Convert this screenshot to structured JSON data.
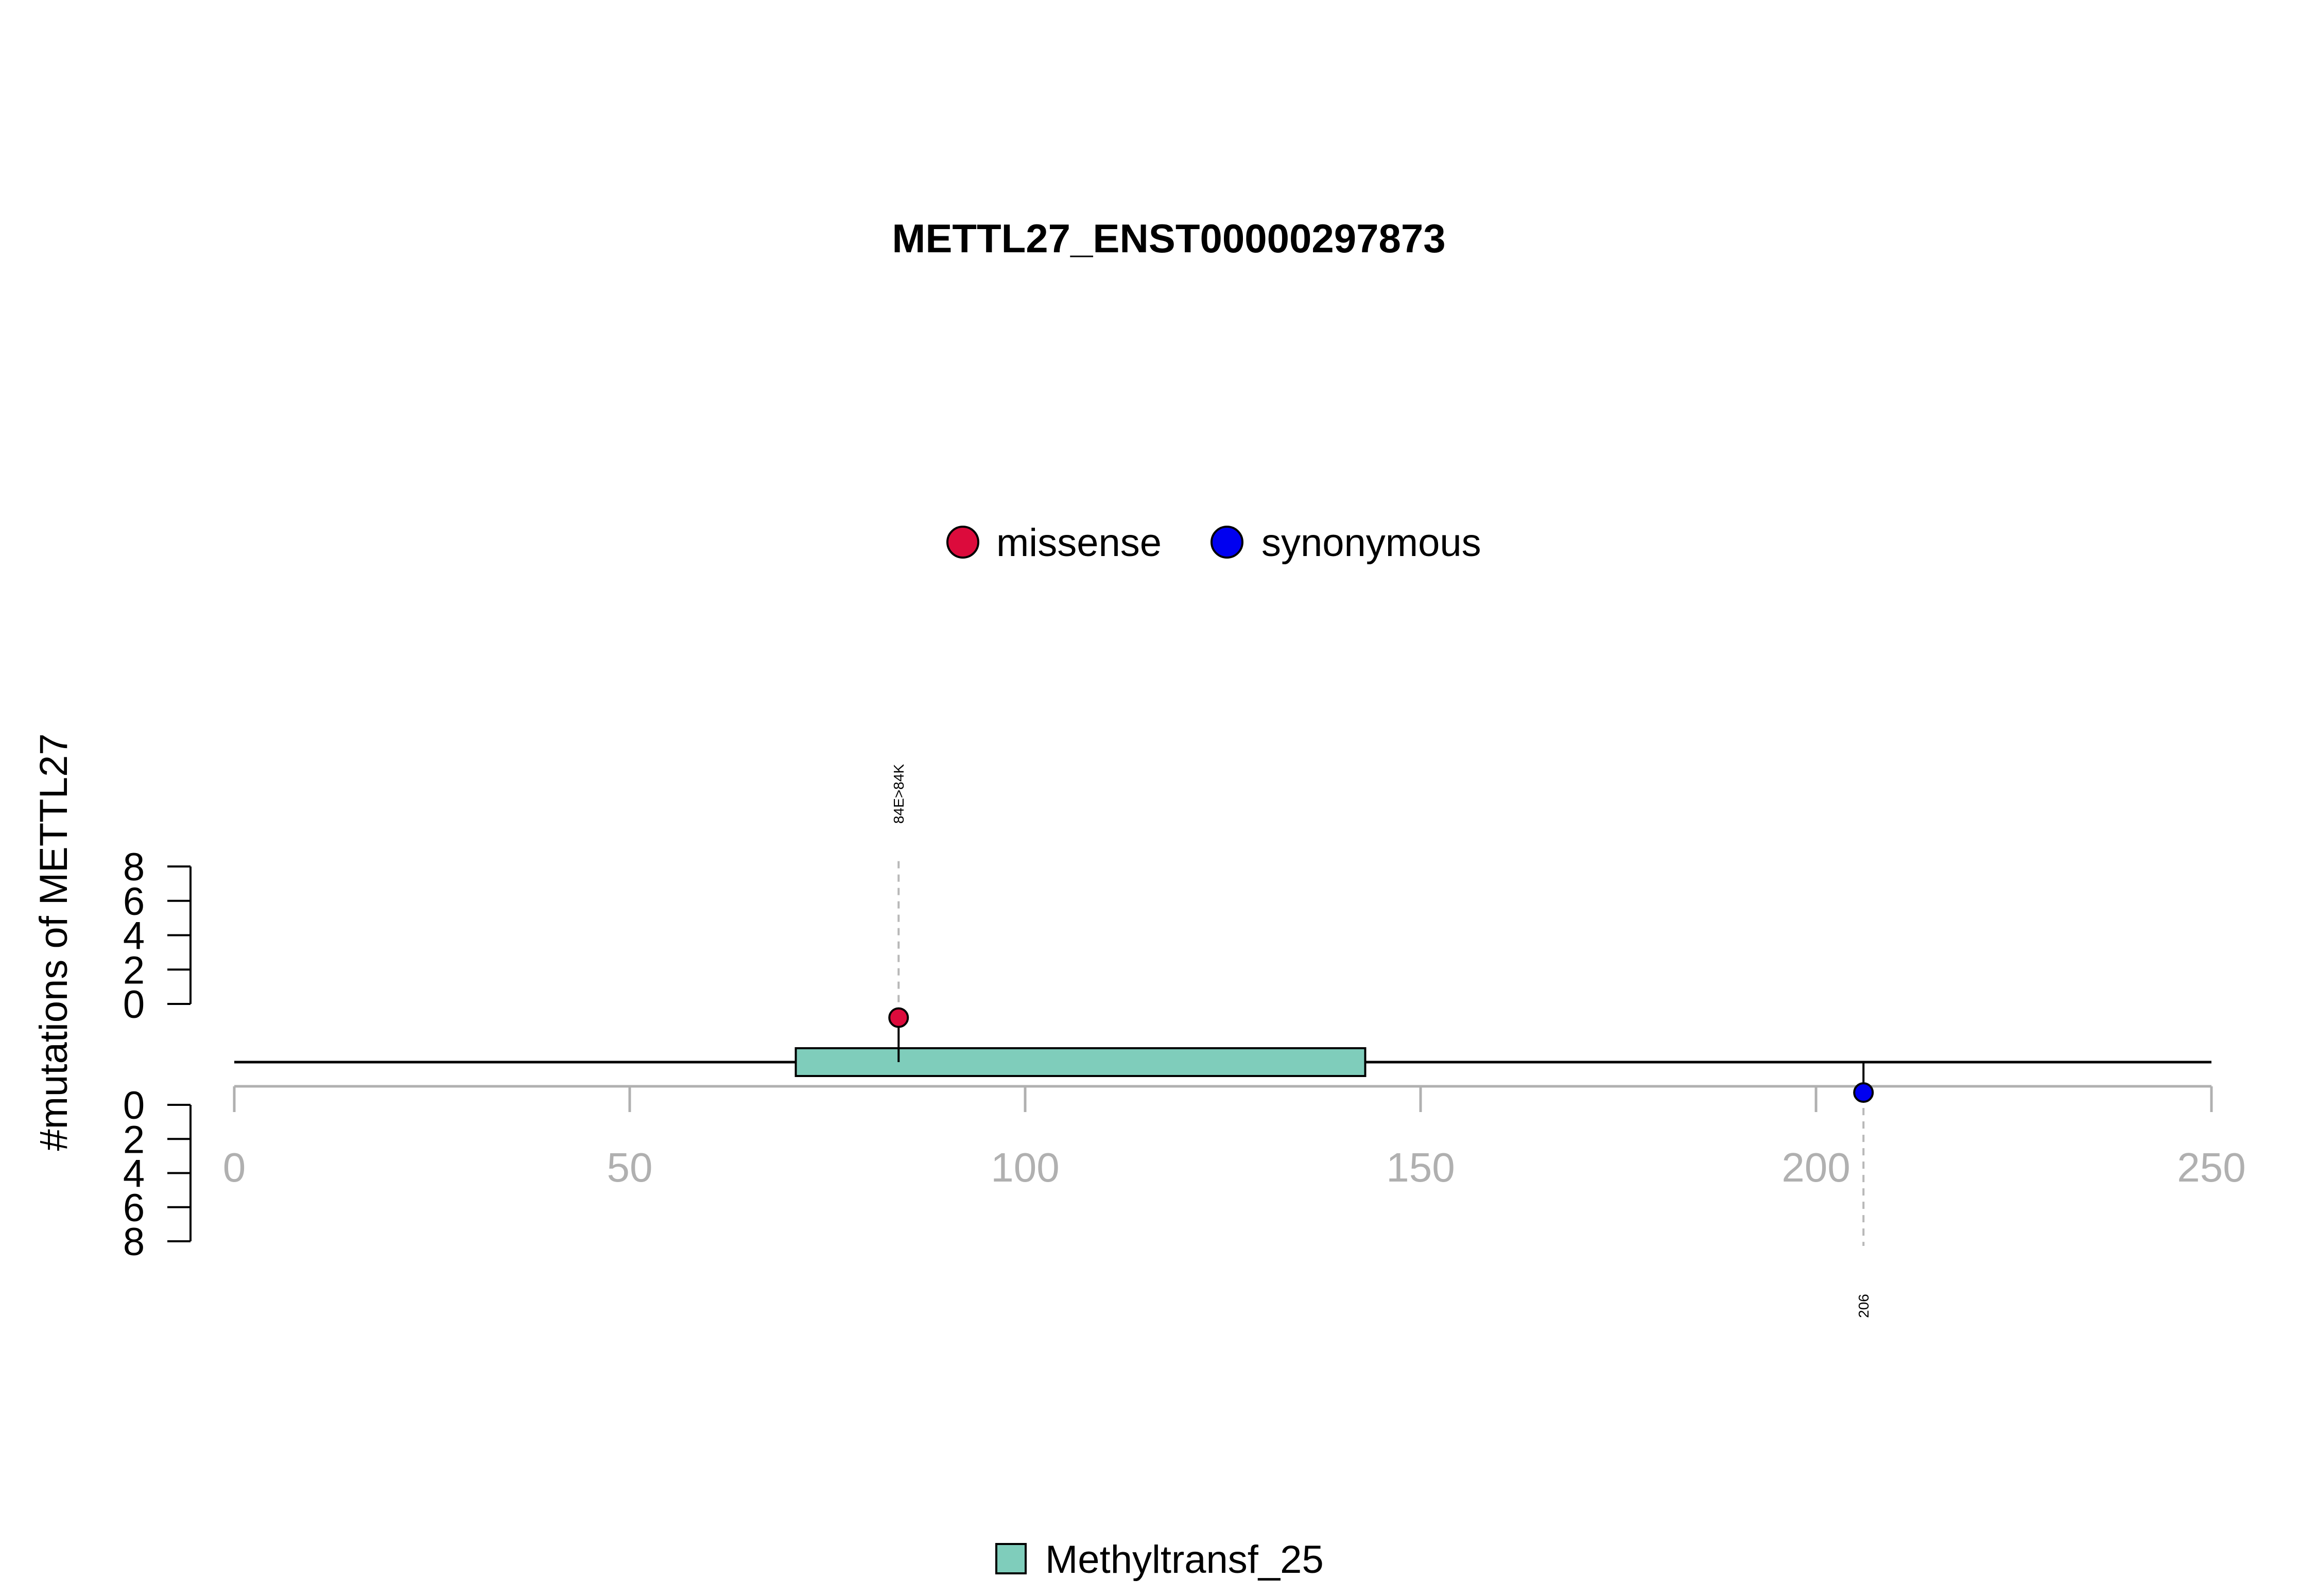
{
  "chart_data": {
    "type": "lollipop",
    "title": "METTL27_ENST00000297873",
    "ylabel": "#mutations of METTL27",
    "xlim": [
      0,
      250
    ],
    "x_ticks": [
      0,
      50,
      100,
      150,
      200,
      250
    ],
    "ylim": [
      0,
      8
    ],
    "y_ticks": [
      0,
      2,
      4,
      6,
      8
    ],
    "legend_top": [
      {
        "name": "missense",
        "color": "#DC0B3C"
      },
      {
        "name": "synonymous",
        "color": "#0000F0"
      }
    ],
    "legend_bottom": [
      {
        "name": "Methyltransf_25",
        "color": "#7FCDBB"
      }
    ],
    "protein_length": 250,
    "domains": [
      {
        "name": "Methyltransf_25",
        "start": 71,
        "end": 143,
        "color": "#7FCDBB"
      }
    ],
    "mutations": [
      {
        "position": 84,
        "count": 1,
        "type": "missense",
        "side": "top",
        "label": "84E>84K",
        "color": "#DC0B3C"
      },
      {
        "position": 206,
        "count": 1,
        "type": "synonymous",
        "side": "bottom",
        "label": "206",
        "color": "#0000F0"
      }
    ]
  }
}
